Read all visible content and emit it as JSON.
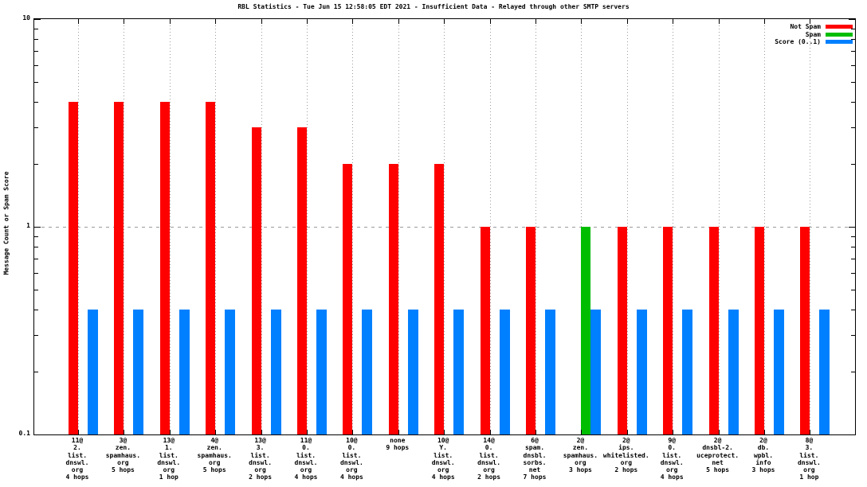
{
  "title": "RBL Statistics - Tue Jun 15 12:58:05 EDT 2021 - Insufficient Data - Relayed through other SMTP servers",
  "y_axis": {
    "label": "Message Count or Spam Score",
    "tick_labels": [
      "10",
      "1",
      "0.1"
    ],
    "scale": "log",
    "min": 0.1,
    "max": 10
  },
  "legend": {
    "position": "top-right",
    "items": [
      {
        "label": "Not Spam",
        "color": "#ff0000"
      },
      {
        "label": "Spam",
        "color": "#00bd00"
      },
      {
        "label": "Score (0..1)",
        "color": "#0080ff"
      }
    ]
  },
  "colors": {
    "not_spam": "#ff0000",
    "spam": "#00bd00",
    "score": "#0080ff",
    "grid": "#9b9b9b",
    "axis": "#000000",
    "background": "#ffffff"
  },
  "chart_data": {
    "type": "bar",
    "title": "RBL Statistics - Tue Jun 15 12:58:05 EDT 2021 - Insufficient Data - Relayed through other SMTP servers",
    "xlabel": "",
    "ylabel": "Message Count or Spam Score",
    "y_scale": "log",
    "ylim": [
      0.1,
      10
    ],
    "grid": {
      "y_dashed_at": 1,
      "x_dotted_per_category": true
    },
    "legend_position": "top-right",
    "categories": [
      [
        "11@",
        "2.",
        "list.",
        "dnswl.",
        "org",
        "4 hops"
      ],
      [
        "3@",
        "zen.",
        "spamhaus.",
        "org",
        "5 hops"
      ],
      [
        "13@",
        "1.",
        "list.",
        "dnswl.",
        "org",
        "1 hop"
      ],
      [
        "4@",
        "zen.",
        "spamhaus.",
        "org",
        "5 hops"
      ],
      [
        "13@",
        "3.",
        "list.",
        "dnswl.",
        "org",
        "2 hops"
      ],
      [
        "11@",
        "0.",
        "list.",
        "dnswl.",
        "org",
        "4 hops"
      ],
      [
        "10@",
        "0.",
        "list.",
        "dnswl.",
        "org",
        "4 hops"
      ],
      [
        "none",
        "9 hops"
      ],
      [
        "10@",
        "Y.",
        "list.",
        "dnswl.",
        "org",
        "4 hops"
      ],
      [
        "14@",
        "0.",
        "list.",
        "dnswl.",
        "org",
        "2 hops"
      ],
      [
        "6@",
        "spam.",
        "dnsbl.",
        "sorbs.",
        "net",
        "7 hops"
      ],
      [
        "2@",
        "zen.",
        "spamhaus.",
        "org",
        "3 hops"
      ],
      [
        "2@",
        "ips.",
        "whitelisted.",
        "org",
        "2 hops"
      ],
      [
        "9@",
        "0.",
        "list.",
        "dnswl.",
        "org",
        "4 hops"
      ],
      [
        "2@",
        "dnsbl-2.",
        "uceprotect.",
        "net",
        "5 hops"
      ],
      [
        "2@",
        "db.",
        "wpbl.",
        "info",
        "3 hops"
      ],
      [
        "8@",
        "3.",
        "list.",
        "dnswl.",
        "org",
        "1 hop"
      ]
    ],
    "series": [
      {
        "name": "Not Spam",
        "color": "#ff0000",
        "values": [
          4,
          4,
          4,
          4,
          3,
          3,
          2,
          2,
          2,
          1,
          1,
          0,
          1,
          1,
          1,
          1,
          1
        ]
      },
      {
        "name": "Spam",
        "color": "#00bd00",
        "values": [
          0,
          0,
          0,
          0,
          0,
          0,
          0,
          0,
          0,
          0,
          0,
          1,
          0,
          0,
          0,
          0,
          0
        ]
      },
      {
        "name": "Score (0..1)",
        "color": "#0080ff",
        "values": [
          0.4,
          0.4,
          0.4,
          0.4,
          0.4,
          0.4,
          0.4,
          0.4,
          0.4,
          0.4,
          0.4,
          0.4,
          0.4,
          0.4,
          0.4,
          0.4,
          0.4
        ]
      }
    ]
  }
}
